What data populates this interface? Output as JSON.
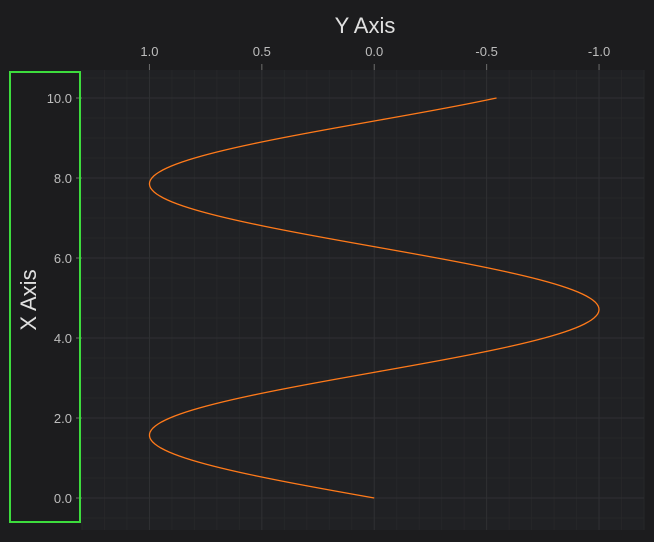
{
  "chart_data": {
    "type": "line",
    "title": "",
    "xlabel": "X Axis",
    "ylabel": "Y Axis",
    "orientation": "vertical-x",
    "x_axis_position": "left",
    "y_axis_position": "top",
    "y_reversed": true,
    "xlim": [
      -0.8,
      10.7
    ],
    "ylim": [
      1.3,
      -1.2
    ],
    "x_ticks": [
      "0.0",
      "2.0",
      "4.0",
      "6.0",
      "8.0",
      "10.0"
    ],
    "y_ticks": [
      "1.0",
      "0.5",
      "0.0",
      "-0.5",
      "-1.0"
    ],
    "grid": true,
    "highlight_axis": "x",
    "series": [
      {
        "color": "#ff7a1a",
        "function": "sin",
        "x_range": [
          0,
          10
        ],
        "points": 200
      }
    ]
  },
  "colors": {
    "background": "#1c1c1e",
    "plot_background": "#202124",
    "highlight": "#3ddc3d"
  }
}
